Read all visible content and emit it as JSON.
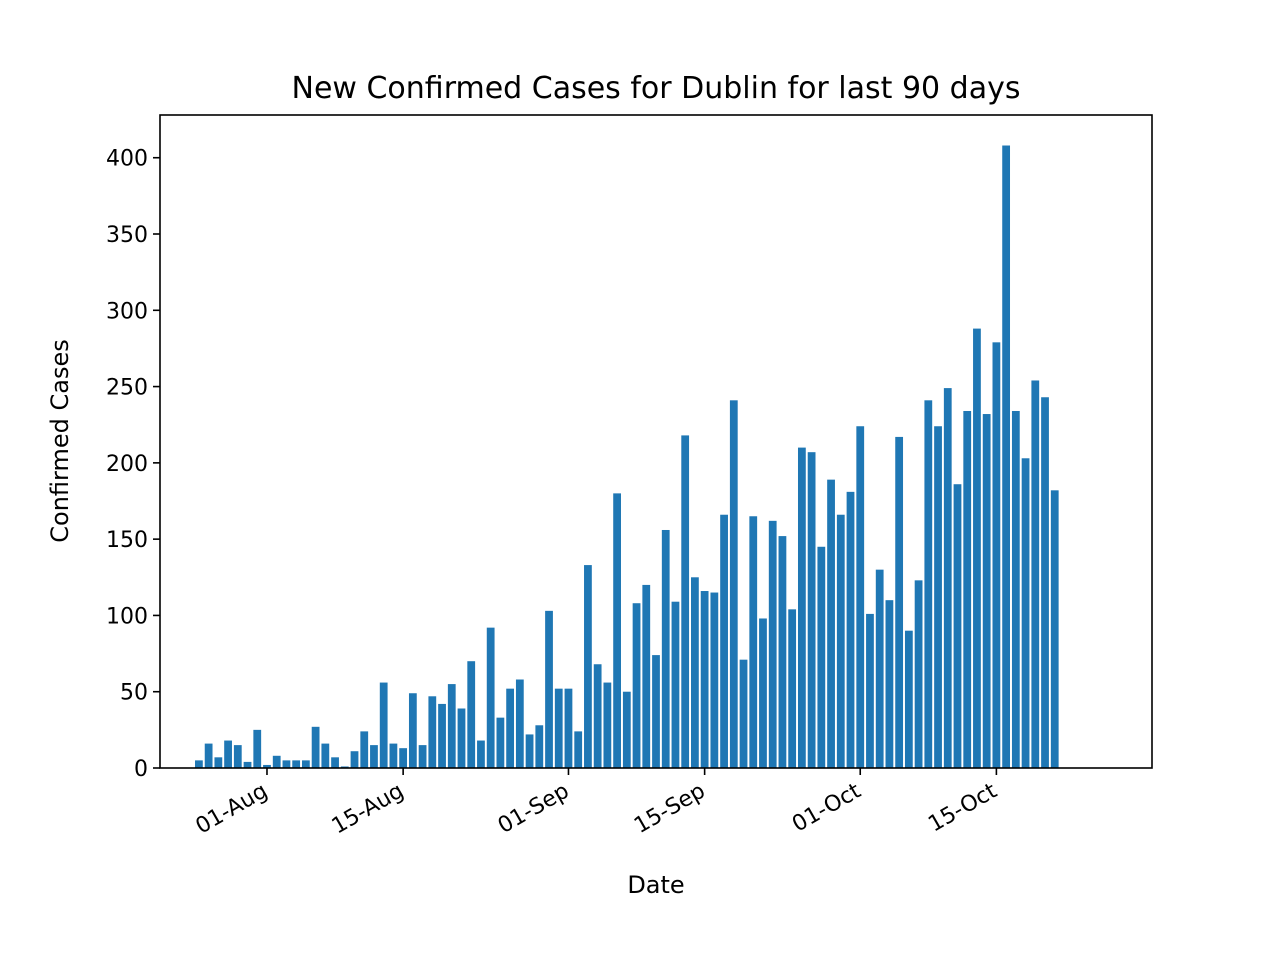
{
  "chart_data": {
    "type": "bar",
    "title": "New Confirmed Cases for Dublin for last 90 days",
    "xlabel": "Date",
    "ylabel": "Confirmed Cases",
    "x_start_date": "2020-07-25",
    "x_range_dates": [
      "2020-07-21",
      "2020-10-31"
    ],
    "ylim": [
      0,
      428
    ],
    "yticks": [
      0,
      50,
      100,
      150,
      200,
      250,
      300,
      350,
      400
    ],
    "xticks": [
      {
        "label": "01-Aug",
        "date": "2020-08-01"
      },
      {
        "label": "15-Aug",
        "date": "2020-08-15"
      },
      {
        "label": "01-Sep",
        "date": "2020-09-01"
      },
      {
        "label": "15-Sep",
        "date": "2020-09-15"
      },
      {
        "label": "01-Oct",
        "date": "2020-10-01"
      },
      {
        "label": "15-Oct",
        "date": "2020-10-15"
      }
    ],
    "values": [
      5,
      16,
      7,
      18,
      15,
      4,
      25,
      2,
      8,
      5,
      5,
      5,
      27,
      16,
      7,
      1,
      11,
      24,
      15,
      56,
      16,
      13,
      49,
      15,
      47,
      42,
      55,
      39,
      70,
      18,
      92,
      33,
      52,
      58,
      22,
      28,
      103,
      52,
      52,
      24,
      133,
      68,
      56,
      180,
      50,
      108,
      120,
      74,
      156,
      109,
      218,
      125,
      116,
      115,
      166,
      241,
      71,
      165,
      98,
      162,
      152,
      104,
      210,
      207,
      145,
      189,
      166,
      181,
      224,
      101,
      130,
      110,
      217,
      90,
      123,
      241,
      224,
      249,
      186,
      234,
      288,
      232,
      279,
      408,
      234,
      203,
      254,
      243,
      182
    ],
    "bar_color": "#1f77b4",
    "grid": false,
    "legend": "none"
  }
}
